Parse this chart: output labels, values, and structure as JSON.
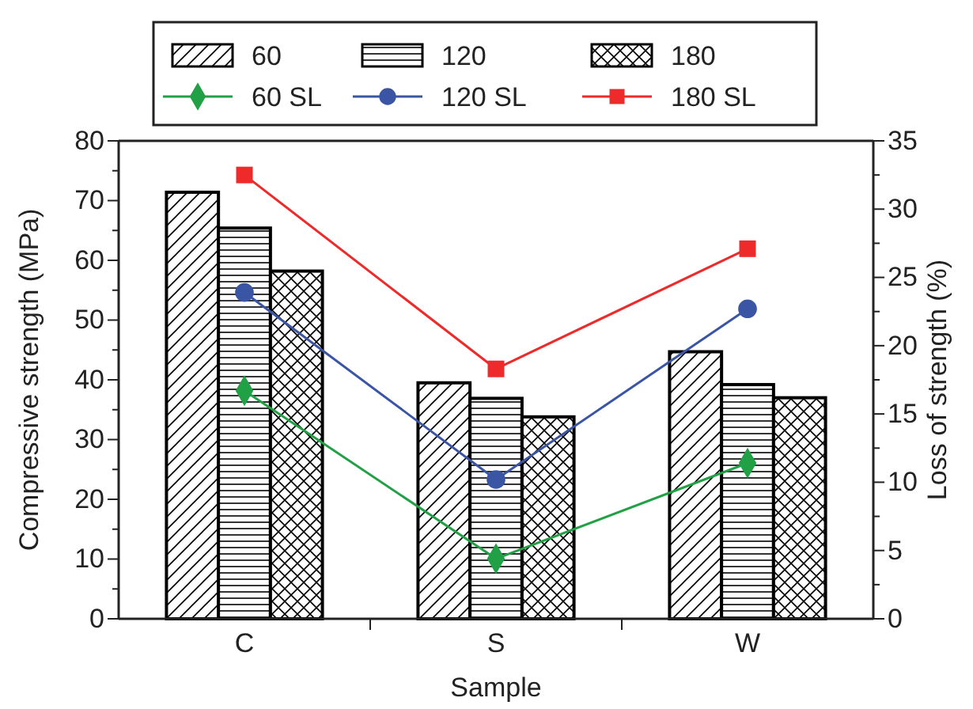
{
  "chart_data": {
    "type": "bar",
    "xlabel": "Sample",
    "ylabel": "Compressive strength (MPa)",
    "y2label": "Loss of strength (%)",
    "categories": [
      "C",
      "S",
      "W"
    ],
    "series": [
      {
        "name": "60",
        "type": "bar",
        "color": "#000000",
        "values": [
          71.4,
          39.5,
          44.7
        ]
      },
      {
        "name": "120",
        "type": "bar",
        "color": "#000000",
        "values": [
          65.4,
          36.9,
          39.2
        ]
      },
      {
        "name": "180",
        "type": "bar",
        "color": "#000000",
        "values": [
          58.2,
          33.8,
          37.0
        ]
      },
      {
        "name": "60 SL",
        "type": "line",
        "axis": "y2",
        "marker": "diamond",
        "color": "#22a046",
        "values": [
          16.7,
          4.4,
          11.4
        ]
      },
      {
        "name": "120 SL",
        "type": "line",
        "axis": "y2",
        "marker": "circle",
        "color": "#3b55a5",
        "values": [
          23.9,
          10.2,
          22.7
        ]
      },
      {
        "name": "180 SL",
        "type": "line",
        "axis": "y2",
        "marker": "square",
        "color": "#ee2a2a",
        "values": [
          32.5,
          18.3,
          27.1
        ]
      }
    ],
    "ylim": [
      0,
      80
    ],
    "yticks": [
      0,
      {
        "value": 5,
        "label": null
      },
      10,
      {
        "value": 15,
        "label": null
      },
      20,
      {
        "value": 25,
        "label": null
      },
      30,
      {
        "value": 35,
        "label": null
      },
      40,
      {
        "value": 45,
        "label": null
      },
      50,
      {
        "value": 55,
        "label": null
      },
      60,
      {
        "value": 65,
        "label": null
      },
      70,
      {
        "value": 75,
        "label": null
      },
      80
    ],
    "y2lim": [
      0,
      35
    ],
    "y2ticks": [
      0,
      {
        "value": 2.5,
        "label": null
      },
      5,
      {
        "value": 7.5,
        "label": null
      },
      10,
      {
        "value": 12.5,
        "label": null
      },
      15,
      {
        "value": 17.5,
        "label": null
      },
      20,
      {
        "value": 22.5,
        "label": null
      },
      25,
      {
        "value": 27.5,
        "label": null
      },
      30,
      {
        "value": 32.5,
        "label": null
      },
      35
    ],
    "grid": false,
    "legend": "top"
  }
}
